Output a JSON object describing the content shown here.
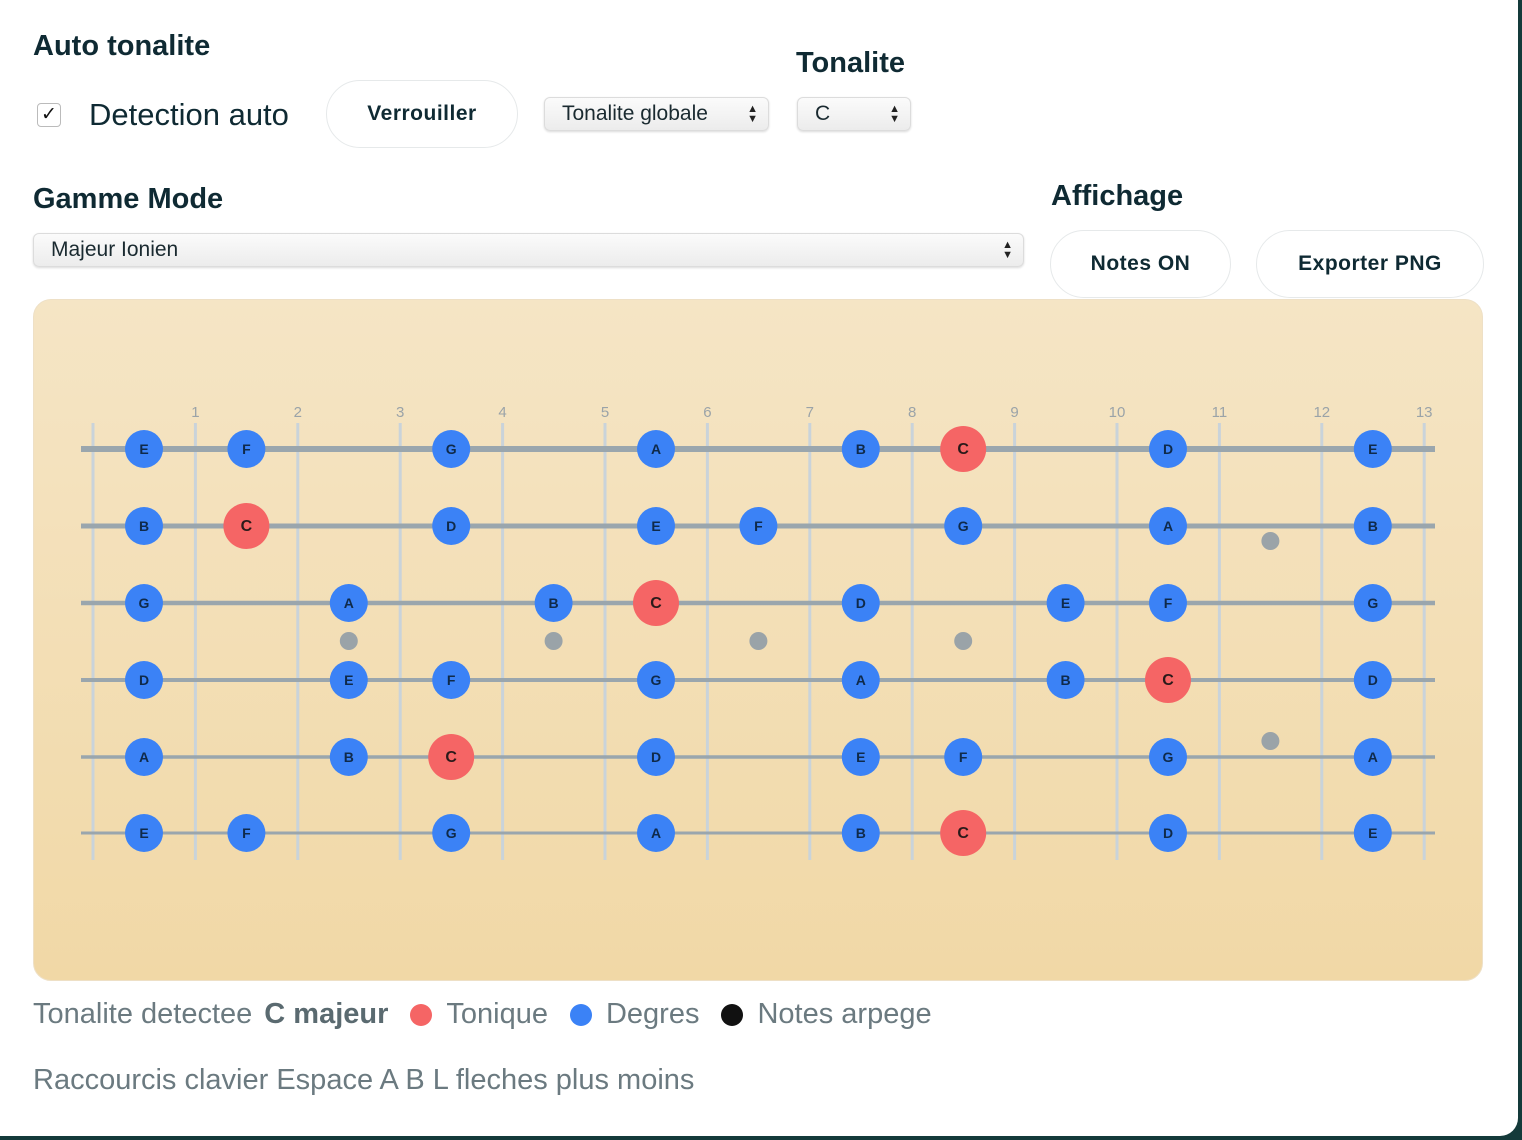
{
  "auto": {
    "title": "Auto tonalite",
    "checkbox_label": "Detection auto",
    "checked": true,
    "lock_button": "Verrouiller",
    "scope_select": "Tonalite globale"
  },
  "tonalite": {
    "title": "Tonalite",
    "value": "C"
  },
  "gamme": {
    "title": "Gamme Mode",
    "value": "Majeur Ionien"
  },
  "affichage": {
    "title": "Affichage",
    "notes_button": "Notes ON",
    "export_button": "Exporter PNG"
  },
  "colors": {
    "tonic": "#f56565",
    "degree": "#3b82f6",
    "arpeggio": "#111111",
    "string": "#9aa6ad",
    "fret": "#c9d3da",
    "inlay": "#9aa3a8"
  },
  "fretboard": {
    "fret_labels": [
      "1",
      "2",
      "3",
      "4",
      "5",
      "6",
      "7",
      "8",
      "9",
      "10",
      "11",
      "12",
      "13"
    ],
    "tonic": "C",
    "strings": [
      {
        "open": "E",
        "notes": [
          {
            "fret": 0,
            "note": "E"
          },
          {
            "fret": 1,
            "note": "F"
          },
          {
            "fret": 3,
            "note": "G"
          },
          {
            "fret": 5,
            "note": "A"
          },
          {
            "fret": 7,
            "note": "B"
          },
          {
            "fret": 8,
            "note": "C"
          },
          {
            "fret": 10,
            "note": "D"
          },
          {
            "fret": 12,
            "note": "E"
          }
        ]
      },
      {
        "open": "B",
        "notes": [
          {
            "fret": 0,
            "note": "B"
          },
          {
            "fret": 1,
            "note": "C"
          },
          {
            "fret": 3,
            "note": "D"
          },
          {
            "fret": 5,
            "note": "E"
          },
          {
            "fret": 6,
            "note": "F"
          },
          {
            "fret": 8,
            "note": "G"
          },
          {
            "fret": 10,
            "note": "A"
          },
          {
            "fret": 12,
            "note": "B"
          }
        ]
      },
      {
        "open": "G",
        "notes": [
          {
            "fret": 0,
            "note": "G"
          },
          {
            "fret": 2,
            "note": "A"
          },
          {
            "fret": 4,
            "note": "B"
          },
          {
            "fret": 5,
            "note": "C"
          },
          {
            "fret": 7,
            "note": "D"
          },
          {
            "fret": 9,
            "note": "E"
          },
          {
            "fret": 10,
            "note": "F"
          },
          {
            "fret": 12,
            "note": "G"
          }
        ]
      },
      {
        "open": "D",
        "notes": [
          {
            "fret": 0,
            "note": "D"
          },
          {
            "fret": 2,
            "note": "E"
          },
          {
            "fret": 3,
            "note": "F"
          },
          {
            "fret": 5,
            "note": "G"
          },
          {
            "fret": 7,
            "note": "A"
          },
          {
            "fret": 9,
            "note": "B"
          },
          {
            "fret": 10,
            "note": "C"
          },
          {
            "fret": 12,
            "note": "D"
          }
        ]
      },
      {
        "open": "A",
        "notes": [
          {
            "fret": 0,
            "note": "A"
          },
          {
            "fret": 2,
            "note": "B"
          },
          {
            "fret": 3,
            "note": "C"
          },
          {
            "fret": 5,
            "note": "D"
          },
          {
            "fret": 7,
            "note": "E"
          },
          {
            "fret": 8,
            "note": "F"
          },
          {
            "fret": 10,
            "note": "G"
          },
          {
            "fret": 12,
            "note": "A"
          }
        ]
      },
      {
        "open": "E",
        "notes": [
          {
            "fret": 0,
            "note": "E"
          },
          {
            "fret": 1,
            "note": "F"
          },
          {
            "fret": 3,
            "note": "G"
          },
          {
            "fret": 5,
            "note": "A"
          },
          {
            "fret": 7,
            "note": "B"
          },
          {
            "fret": 8,
            "note": "C"
          },
          {
            "fret": 10,
            "note": "D"
          },
          {
            "fret": 12,
            "note": "E"
          }
        ]
      }
    ],
    "inlays_single": [
      2,
      4,
      6,
      8
    ],
    "inlays_double": [
      11
    ]
  },
  "legend": {
    "detected_label": "Tonalite detectee",
    "detected_value": "C majeur",
    "tonic": "Tonique",
    "degrees": "Degres",
    "arpeggio": "Notes arpege"
  },
  "shortcuts": "Raccourcis clavier Espace A B L fleches plus moins"
}
